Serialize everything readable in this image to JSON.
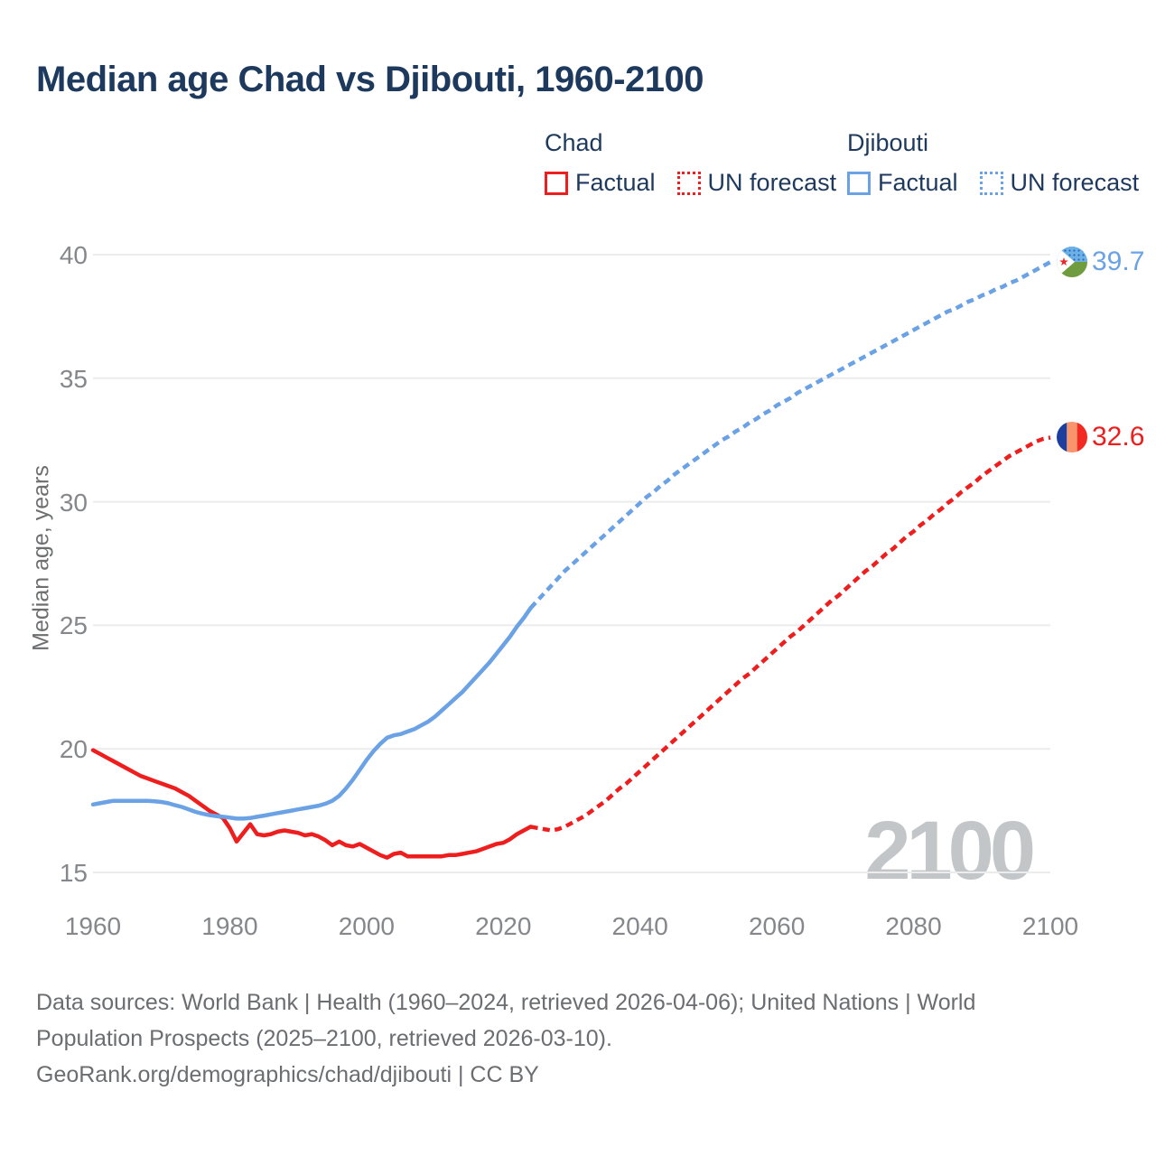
{
  "header": {
    "title": "Median age Chad vs Djibouti, 1960-2100"
  },
  "legend": {
    "groups": [
      {
        "name": "Chad",
        "color": "#ee1e1e",
        "items": [
          {
            "label": "Factual",
            "style": "solid"
          },
          {
            "label": "UN forecast",
            "style": "dotted"
          }
        ]
      },
      {
        "name": "Djibouti",
        "color": "#6aa2e5",
        "items": [
          {
            "label": "Factual",
            "style": "solid"
          },
          {
            "label": "UN forecast",
            "style": "dotted"
          }
        ]
      }
    ]
  },
  "chart_data": {
    "type": "line",
    "title": "Median age Chad vs Djibouti, 1960-2100",
    "xlabel": "",
    "ylabel": "Median age, years",
    "xlim": [
      1960,
      2100
    ],
    "ylim": [
      15,
      40
    ],
    "x_ticks": [
      1960,
      1980,
      2000,
      2020,
      2040,
      2060,
      2080,
      2100
    ],
    "y_ticks": [
      15,
      20,
      25,
      30,
      35,
      40
    ],
    "grid": "horizontal",
    "grid_color": "#ececec",
    "watermark": "2100",
    "icons": {
      "chad_line_end": "chad-flag-icon",
      "djibouti_line_end": "djibouti-flag-icon"
    },
    "series": [
      {
        "name": "Chad factual",
        "data_name": "chad-factual-line",
        "color": "#ee1e1e",
        "line_style": "solid",
        "start_year": 1960,
        "values": [
          19.95,
          19.8,
          19.65,
          19.5,
          19.35,
          19.2,
          19.05,
          18.9,
          18.8,
          18.7,
          18.6,
          18.5,
          18.4,
          18.25,
          18.1,
          17.9,
          17.7,
          17.5,
          17.35,
          17.2,
          16.8,
          16.25,
          16.6,
          16.95,
          16.55,
          16.5,
          16.55,
          16.65,
          16.7,
          16.65,
          16.6,
          16.5,
          16.55,
          16.45,
          16.3,
          16.1,
          16.25,
          16.1,
          16.05,
          16.15,
          16.0,
          15.85,
          15.7,
          15.6,
          15.75,
          15.8,
          15.65,
          15.65,
          15.65,
          15.65,
          15.65,
          15.65,
          15.7,
          15.7,
          15.75,
          15.8,
          15.85,
          15.95,
          16.05,
          16.15,
          16.2,
          16.35,
          16.55,
          16.7,
          16.85
        ]
      },
      {
        "name": "Chad UN forecast",
        "data_name": "chad-forecast-line",
        "color": "#ee1e1e",
        "line_style": "dashed",
        "start_year": 2024,
        "values": [
          16.85,
          16.8,
          16.75,
          16.7,
          16.75,
          16.85,
          17.0,
          17.15,
          17.3,
          17.5,
          17.7,
          17.9,
          18.15,
          18.4,
          18.6,
          18.85,
          19.1,
          19.35,
          19.6,
          19.85,
          20.1,
          20.35,
          20.6,
          20.85,
          21.1,
          21.35,
          21.6,
          21.85,
          22.1,
          22.35,
          22.6,
          22.85,
          23.05,
          23.3,
          23.55,
          23.8,
          24.05,
          24.3,
          24.55,
          24.75,
          25.0,
          25.25,
          25.5,
          25.75,
          26.0,
          26.2,
          26.45,
          26.7,
          26.95,
          27.2,
          27.4,
          27.65,
          27.9,
          28.1,
          28.35,
          28.6,
          28.8,
          29.05,
          29.25,
          29.5,
          29.7,
          29.95,
          30.15,
          30.4,
          30.6,
          30.8,
          31.05,
          31.25,
          31.45,
          31.65,
          31.85,
          32.0,
          32.15,
          32.3,
          32.45,
          32.55,
          32.6
        ]
      },
      {
        "name": "Djibouti factual",
        "data_name": "djibouti-factual-line",
        "color": "#6aa2e5",
        "line_style": "solid",
        "start_year": 1960,
        "values": [
          17.75,
          17.8,
          17.85,
          17.9,
          17.9,
          17.9,
          17.9,
          17.9,
          17.9,
          17.88,
          17.85,
          17.8,
          17.72,
          17.65,
          17.55,
          17.45,
          17.38,
          17.32,
          17.28,
          17.25,
          17.22,
          17.18,
          17.18,
          17.2,
          17.25,
          17.3,
          17.35,
          17.4,
          17.45,
          17.5,
          17.55,
          17.6,
          17.65,
          17.7,
          17.78,
          17.9,
          18.1,
          18.4,
          18.75,
          19.15,
          19.55,
          19.9,
          20.2,
          20.45,
          20.55,
          20.6,
          20.7,
          20.8,
          20.95,
          21.1,
          21.3,
          21.55,
          21.8,
          22.05,
          22.3,
          22.6,
          22.9,
          23.2,
          23.5,
          23.85,
          24.2,
          24.55,
          24.95,
          25.3,
          25.7
        ]
      },
      {
        "name": "Djibouti UN forecast",
        "data_name": "djibouti-forecast-line",
        "color": "#6aa2e5",
        "line_style": "dashed",
        "start_year": 2024,
        "values": [
          25.7,
          26.0,
          26.3,
          26.6,
          26.9,
          27.2,
          27.45,
          27.7,
          27.95,
          28.2,
          28.45,
          28.7,
          28.95,
          29.2,
          29.45,
          29.7,
          29.95,
          30.2,
          30.4,
          30.65,
          30.85,
          31.1,
          31.3,
          31.5,
          31.7,
          31.9,
          32.1,
          32.3,
          32.5,
          32.65,
          32.85,
          33.0,
          33.2,
          33.35,
          33.55,
          33.7,
          33.9,
          34.05,
          34.2,
          34.4,
          34.55,
          34.7,
          34.85,
          35.0,
          35.15,
          35.3,
          35.45,
          35.6,
          35.75,
          35.9,
          36.05,
          36.2,
          36.35,
          36.5,
          36.65,
          36.8,
          36.95,
          37.1,
          37.25,
          37.4,
          37.55,
          37.7,
          37.8,
          37.95,
          38.1,
          38.2,
          38.35,
          38.45,
          38.6,
          38.7,
          38.85,
          38.95,
          39.1,
          39.25,
          39.4,
          39.55,
          39.7
        ]
      }
    ],
    "end_labels": [
      {
        "series": "Djibouti",
        "value": "39.7",
        "color": "#6aa2e5"
      },
      {
        "series": "Chad",
        "value": "32.6",
        "color": "#ee1e1e"
      }
    ]
  },
  "footer": {
    "lines": [
      "Data sources: World Bank | Health (1960–2024, retrieved 2026-04-06); United Nations | World",
      "Population Prospects (2025–2100, retrieved 2026-03-10).",
      "GeoRank.org/demographics/chad/djibouti | CC BY"
    ]
  }
}
